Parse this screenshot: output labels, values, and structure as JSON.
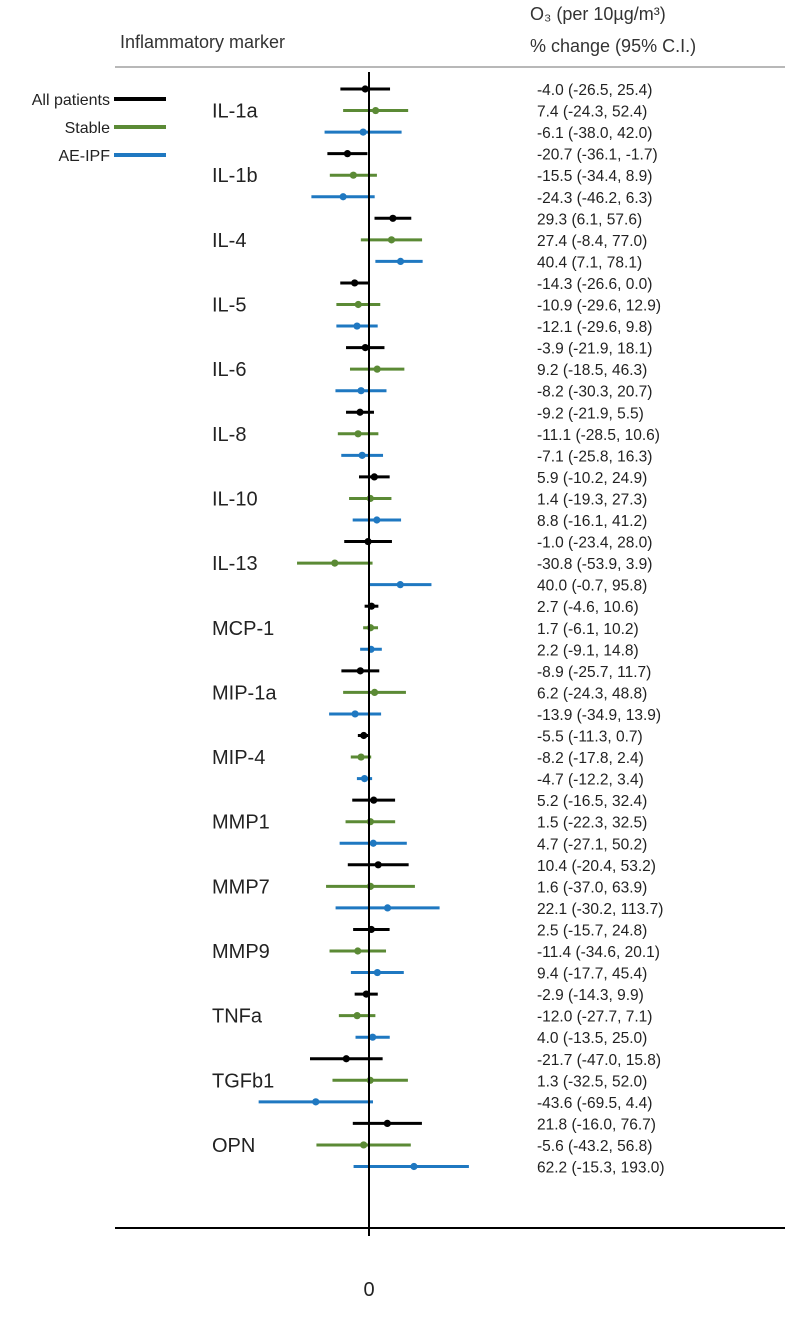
{
  "header": {
    "marker_label": "Inflammatory marker",
    "effect_line1": "O₃ (per 10µg/m³)",
    "effect_line2": "% change (95% C.I.)"
  },
  "chart_data": {
    "type": "forest",
    "title": "",
    "xlabel": "",
    "ylabel": "Inflammatory marker",
    "x_tick_labels": [
      "0"
    ],
    "reference_line": 0,
    "legend": {
      "position": "top-left",
      "entries": [
        {
          "name": "All patients",
          "color": "#000000"
        },
        {
          "name": "Stable",
          "color": "#5b8a35"
        },
        {
          "name": "AE-IPF",
          "color": "#1f78c1"
        }
      ]
    },
    "markers": [
      {
        "name": "IL-1a",
        "rows": [
          {
            "group": "All patients",
            "est": -4.0,
            "lo": -26.5,
            "hi": 25.4,
            "label": "-4.0 (-26.5, 25.4)"
          },
          {
            "group": "Stable",
            "est": 7.4,
            "lo": -24.3,
            "hi": 52.4,
            "label": "7.4 (-24.3, 52.4)"
          },
          {
            "group": "AE-IPF",
            "est": -6.1,
            "lo": -38.0,
            "hi": 42.0,
            "label": "-6.1 (-38.0, 42.0)"
          }
        ]
      },
      {
        "name": "IL-1b",
        "rows": [
          {
            "group": "All patients",
            "est": -20.7,
            "lo": -36.1,
            "hi": -1.7,
            "label": "-20.7 (-36.1, -1.7)"
          },
          {
            "group": "Stable",
            "est": -15.5,
            "lo": -34.4,
            "hi": 8.9,
            "label": "-15.5 (-34.4, 8.9)"
          },
          {
            "group": "AE-IPF",
            "est": -24.3,
            "lo": -46.2,
            "hi": 6.3,
            "label": "-24.3 (-46.2, 6.3)"
          }
        ]
      },
      {
        "name": "IL-4",
        "rows": [
          {
            "group": "All patients",
            "est": 29.3,
            "lo": 6.1,
            "hi": 57.6,
            "label": "29.3 (6.1, 57.6)"
          },
          {
            "group": "Stable",
            "est": 27.4,
            "lo": -8.4,
            "hi": 77.0,
            "label": "27.4 (-8.4, 77.0)"
          },
          {
            "group": "AE-IPF",
            "est": 40.4,
            "lo": 7.1,
            "hi": 78.1,
            "label": "40.4 (7.1, 78.1)"
          }
        ]
      },
      {
        "name": "IL-5",
        "rows": [
          {
            "group": "All patients",
            "est": -14.3,
            "lo": -26.6,
            "hi": 0.0,
            "label": "-14.3 (-26.6, 0.0)"
          },
          {
            "group": "Stable",
            "est": -10.9,
            "lo": -29.6,
            "hi": 12.9,
            "label": "-10.9 (-29.6, 12.9)"
          },
          {
            "group": "AE-IPF",
            "est": -12.1,
            "lo": -29.6,
            "hi": 9.8,
            "label": "-12.1 (-29.6, 9.8)"
          }
        ]
      },
      {
        "name": "IL-6",
        "rows": [
          {
            "group": "All patients",
            "est": -3.9,
            "lo": -21.9,
            "hi": 18.1,
            "label": "-3.9 (-21.9, 18.1)"
          },
          {
            "group": "Stable",
            "est": 9.2,
            "lo": -18.5,
            "hi": 46.3,
            "label": "9.2 (-18.5, 46.3)"
          },
          {
            "group": "AE-IPF",
            "est": -8.2,
            "lo": -30.3,
            "hi": 20.7,
            "label": "-8.2 (-30.3, 20.7)"
          }
        ]
      },
      {
        "name": "IL-8",
        "rows": [
          {
            "group": "All patients",
            "est": -9.2,
            "lo": -21.9,
            "hi": 5.5,
            "label": "-9.2 (-21.9, 5.5)"
          },
          {
            "group": "Stable",
            "est": -11.1,
            "lo": -28.5,
            "hi": 10.6,
            "label": "-11.1 (-28.5, 10.6)"
          },
          {
            "group": "AE-IPF",
            "est": -7.1,
            "lo": -25.8,
            "hi": 16.3,
            "label": "-7.1 (-25.8, 16.3)"
          }
        ]
      },
      {
        "name": "IL-10",
        "rows": [
          {
            "group": "All patients",
            "est": 5.9,
            "lo": -10.2,
            "hi": 24.9,
            "label": "5.9 (-10.2, 24.9)"
          },
          {
            "group": "Stable",
            "est": 1.4,
            "lo": -19.3,
            "hi": 27.3,
            "label": "1.4 (-19.3, 27.3)"
          },
          {
            "group": "AE-IPF",
            "est": 8.8,
            "lo": -16.1,
            "hi": 41.2,
            "label": "8.8 (-16.1, 41.2)"
          }
        ]
      },
      {
        "name": "IL-13",
        "rows": [
          {
            "group": "All patients",
            "est": -1.0,
            "lo": -23.4,
            "hi": 28.0,
            "label": "-1.0 (-23.4, 28.0)"
          },
          {
            "group": "Stable",
            "est": -30.8,
            "lo": -53.9,
            "hi": 3.9,
            "label": "-30.8 (-53.9, 3.9)"
          },
          {
            "group": "AE-IPF",
            "est": 40.0,
            "lo": -0.7,
            "hi": 95.8,
            "label": "40.0 (-0.7, 95.8)"
          }
        ]
      },
      {
        "name": "MCP-1",
        "rows": [
          {
            "group": "All patients",
            "est": 2.7,
            "lo": -4.6,
            "hi": 10.6,
            "label": "2.7 (-4.6, 10.6)"
          },
          {
            "group": "Stable",
            "est": 1.7,
            "lo": -6.1,
            "hi": 10.2,
            "label": "1.7 (-6.1, 10.2)"
          },
          {
            "group": "AE-IPF",
            "est": 2.2,
            "lo": -9.1,
            "hi": 14.8,
            "label": "2.2 (-9.1, 14.8)"
          }
        ]
      },
      {
        "name": "MIP-1a",
        "rows": [
          {
            "group": "All patients",
            "est": -8.9,
            "lo": -25.7,
            "hi": 11.7,
            "label": "-8.9 (-25.7, 11.7)"
          },
          {
            "group": "Stable",
            "est": 6.2,
            "lo": -24.3,
            "hi": 48.8,
            "label": "6.2 (-24.3, 48.8)"
          },
          {
            "group": "AE-IPF",
            "est": -13.9,
            "lo": -34.9,
            "hi": 13.9,
            "label": "-13.9 (-34.9, 13.9)"
          }
        ]
      },
      {
        "name": "MIP-4",
        "rows": [
          {
            "group": "All patients",
            "est": -5.5,
            "lo": -11.3,
            "hi": 0.7,
            "label": "-5.5 (-11.3, 0.7)"
          },
          {
            "group": "Stable",
            "est": -8.2,
            "lo": -17.8,
            "hi": 2.4,
            "label": "-8.2 (-17.8, 2.4)"
          },
          {
            "group": "AE-IPF",
            "est": -4.7,
            "lo": -12.2,
            "hi": 3.4,
            "label": "-4.7 (-12.2, 3.4)"
          }
        ]
      },
      {
        "name": "MMP1",
        "rows": [
          {
            "group": "All patients",
            "est": 5.2,
            "lo": -16.5,
            "hi": 32.4,
            "label": "5.2 (-16.5, 32.4)"
          },
          {
            "group": "Stable",
            "est": 1.5,
            "lo": -22.3,
            "hi": 32.5,
            "label": "1.5 (-22.3, 32.5)"
          },
          {
            "group": "AE-IPF",
            "est": 4.7,
            "lo": -27.1,
            "hi": 50.2,
            "label": "4.7 (-27.1, 50.2)"
          }
        ]
      },
      {
        "name": "MMP7",
        "rows": [
          {
            "group": "All patients",
            "est": 10.4,
            "lo": -20.4,
            "hi": 53.2,
            "label": "10.4 (-20.4, 53.2)"
          },
          {
            "group": "Stable",
            "est": 1.6,
            "lo": -37.0,
            "hi": 63.9,
            "label": "1.6 (-37.0, 63.9)"
          },
          {
            "group": "AE-IPF",
            "est": 22.1,
            "lo": -30.2,
            "hi": 113.7,
            "label": "22.1 (-30.2, 113.7)"
          }
        ]
      },
      {
        "name": "MMP9",
        "rows": [
          {
            "group": "All patients",
            "est": 2.5,
            "lo": -15.7,
            "hi": 24.8,
            "label": "2.5 (-15.7, 24.8)"
          },
          {
            "group": "Stable",
            "est": -11.4,
            "lo": -34.6,
            "hi": 20.1,
            "label": "-11.4 (-34.6, 20.1)"
          },
          {
            "group": "AE-IPF",
            "est": 9.4,
            "lo": -17.7,
            "hi": 45.4,
            "label": "9.4 (-17.7, 45.4)"
          }
        ]
      },
      {
        "name": "TNFa",
        "rows": [
          {
            "group": "All patients",
            "est": -2.9,
            "lo": -14.3,
            "hi": 9.9,
            "label": "-2.9 (-14.3, 9.9)"
          },
          {
            "group": "Stable",
            "est": -12.0,
            "lo": -27.7,
            "hi": 7.1,
            "label": "-12.0 (-27.7, 7.1)"
          },
          {
            "group": "AE-IPF",
            "est": 4.0,
            "lo": -13.5,
            "hi": 25.0,
            "label": "4.0 (-13.5, 25.0)"
          }
        ]
      },
      {
        "name": "TGFb1",
        "rows": [
          {
            "group": "All patients",
            "est": -21.7,
            "lo": -47.0,
            "hi": 15.8,
            "label": "-21.7 (-47.0, 15.8)"
          },
          {
            "group": "Stable",
            "est": 1.3,
            "lo": -32.5,
            "hi": 52.0,
            "label": "1.3 (-32.5, 52.0)"
          },
          {
            "group": "AE-IPF",
            "est": -43.6,
            "lo": -69.5,
            "hi": 4.4,
            "label": "-43.6 (-69.5, 4.4)"
          }
        ]
      },
      {
        "name": "OPN",
        "rows": [
          {
            "group": "All patients",
            "est": 21.8,
            "lo": -16.0,
            "hi": 76.7,
            "label": "21.8 (-16.0, 76.7)"
          },
          {
            "group": "Stable",
            "est": -5.6,
            "lo": -43.2,
            "hi": 56.8,
            "label": "-5.6 (-43.2, 56.8)"
          },
          {
            "group": "AE-IPF",
            "est": 62.2,
            "lo": -15.3,
            "hi": 193.0,
            "label": "62.2 (-15.3, 193.0)"
          }
        ]
      }
    ]
  }
}
